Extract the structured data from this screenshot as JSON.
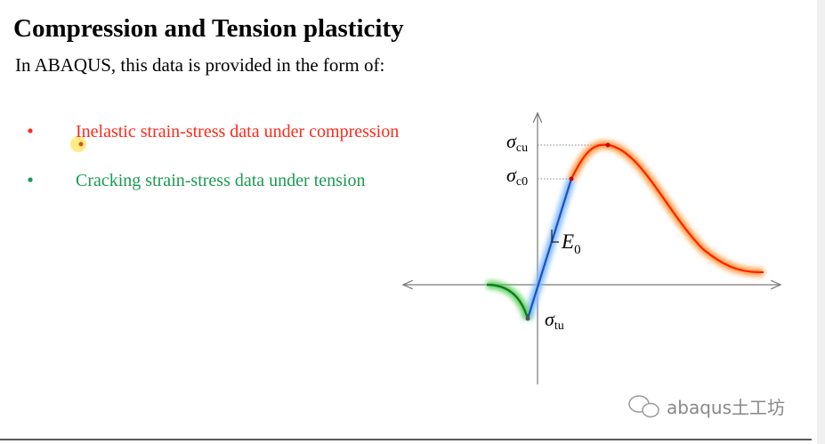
{
  "title": "Compression and Tension plasticity",
  "subtitle": "In ABAQUS, this data is provided in the form of:",
  "bullets": [
    {
      "text": "Inelastic strain-stress data under compression",
      "color": "#ff2a1a"
    },
    {
      "text": "Cracking strain-stress data under tension",
      "color": "#1a9a50"
    }
  ],
  "diagram": {
    "labels": [
      {
        "symbol": "σ",
        "sub": "cu"
      },
      {
        "symbol": "σ",
        "sub": "c0"
      },
      {
        "symbol": "E",
        "sub": "0"
      },
      {
        "symbol": "σ",
        "sub": "tu"
      }
    ]
  },
  "watermark": "abaqus土工坊"
}
